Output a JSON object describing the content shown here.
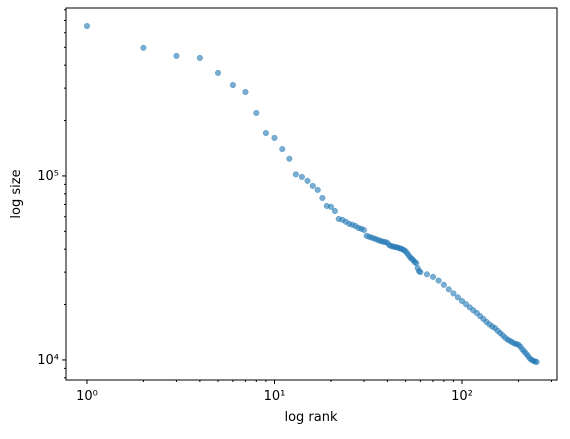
{
  "chart_data": {
    "type": "scatter",
    "xlabel": "log rank",
    "ylabel": "log size",
    "color": "#1f77b4",
    "alpha": 0.6,
    "xscale": "log",
    "yscale": "log",
    "x": [
      1,
      2,
      3,
      4,
      5,
      6,
      7,
      8,
      9,
      10,
      11,
      12,
      13,
      14,
      15,
      16,
      17,
      18,
      19,
      20,
      21,
      22,
      23,
      24,
      25,
      26,
      27,
      28,
      29,
      30,
      31,
      32,
      33,
      34,
      35,
      36,
      37,
      38,
      39,
      40,
      41,
      42,
      43,
      44,
      45,
      46,
      47,
      48,
      49,
      50,
      51,
      52,
      53,
      54,
      55,
      56,
      57,
      58,
      59,
      60,
      65,
      70,
      75,
      80,
      85,
      90,
      95,
      100,
      105,
      110,
      115,
      120,
      125,
      130,
      135,
      140,
      145,
      150,
      155,
      160,
      165,
      170,
      175,
      180,
      185,
      190,
      195,
      200,
      205,
      210,
      215,
      220,
      225,
      230,
      235,
      240,
      245,
      250
    ],
    "y": [
      653000,
      497000,
      449000,
      438000,
      363000,
      312000,
      286000,
      220000,
      171000,
      161000,
      140000,
      124000,
      102000,
      98800,
      94000,
      88300,
      84000,
      75900,
      68700,
      68000,
      64500,
      58400,
      57800,
      56400,
      54900,
      54300,
      53500,
      52200,
      51600,
      50900,
      47300,
      46700,
      46200,
      45700,
      45200,
      44700,
      44200,
      43900,
      43700,
      43300,
      42000,
      41600,
      41300,
      41100,
      40900,
      40600,
      40300,
      40000,
      39500,
      39000,
      38000,
      37000,
      36000,
      35500,
      34800,
      34000,
      33600,
      31600,
      30400,
      30000,
      29200,
      28300,
      27000,
      25600,
      24200,
      23000,
      21900,
      20900,
      20100,
      19300,
      18600,
      18000,
      17300,
      16700,
      16100,
      15600,
      15200,
      14900,
      14400,
      14000,
      13600,
      13200,
      12900,
      12700,
      12500,
      12300,
      12200,
      12100,
      11800,
      11400,
      11100,
      10800,
      10500,
      10200,
      10000,
      9900,
      9800,
      9750
    ],
    "xlim": [
      0.773,
      321
    ],
    "ylim": [
      7780,
      818000
    ],
    "xticks": [
      {
        "value": 1,
        "label": "10⁰"
      },
      {
        "value": 10,
        "label": "10¹"
      },
      {
        "value": 100,
        "label": "10²"
      }
    ],
    "yticks": [
      {
        "value": 10000,
        "label": "10⁴"
      },
      {
        "value": 100000,
        "label": "10⁵"
      }
    ],
    "xminorticks": [
      2,
      3,
      4,
      5,
      6,
      7,
      8,
      9,
      20,
      30,
      40,
      50,
      60,
      70,
      80,
      90,
      200,
      300
    ],
    "yminorticks": [
      8000,
      9000,
      20000,
      30000,
      40000,
      50000,
      60000,
      70000,
      80000,
      90000,
      200000,
      300000,
      400000,
      500000,
      600000,
      700000,
      800000
    ]
  }
}
